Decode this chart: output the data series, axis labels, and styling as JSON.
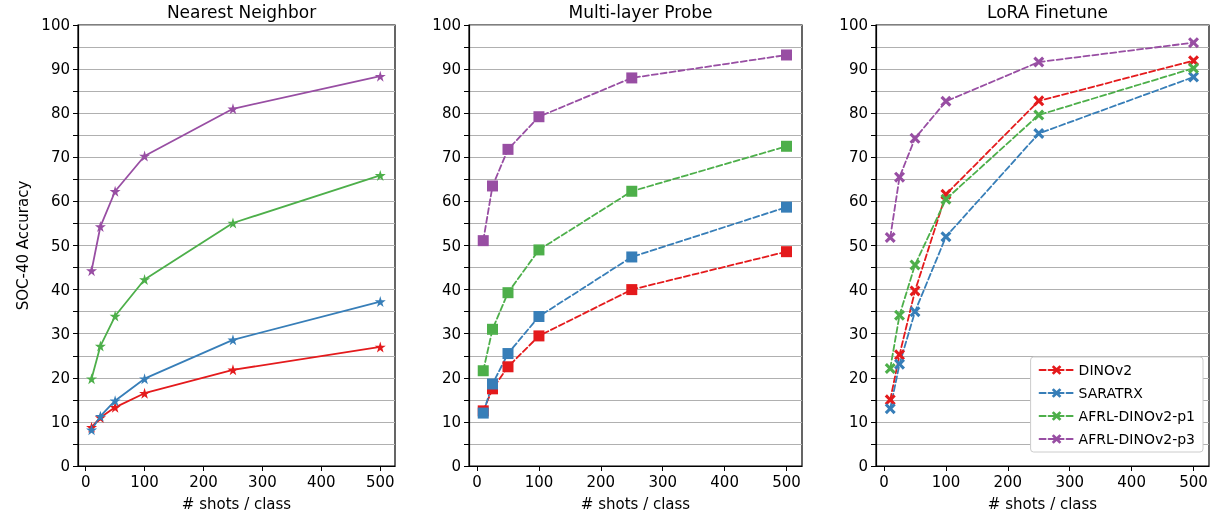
{
  "chart_data": [
    {
      "type": "line",
      "title": "Nearest Neighbor",
      "xlabel": "# shots / class",
      "ylabel": "SOC-40 Accuracy",
      "x": [
        10,
        25,
        50,
        100,
        250,
        500
      ],
      "marker": "star",
      "line_style": "solid",
      "grid": "y",
      "legend": false,
      "xlim": [
        -13,
        525
      ],
      "xticks": [
        0,
        100,
        200,
        300,
        400,
        500
      ],
      "ylim": [
        0,
        100
      ],
      "yticks": [
        0,
        {
          "value": 5,
          "label": null
        },
        10,
        {
          "value": 15,
          "label": null
        },
        20,
        {
          "value": 25,
          "label": null
        },
        30,
        {
          "value": 35,
          "label": null
        },
        40,
        {
          "value": 45,
          "label": null
        },
        50,
        {
          "value": 55,
          "label": null
        },
        60,
        {
          "value": 65,
          "label": null
        },
        70,
        {
          "value": 75,
          "label": null
        },
        80,
        {
          "value": 85,
          "label": null
        },
        90,
        {
          "value": 95,
          "label": null
        },
        100
      ],
      "series": [
        {
          "color": "#e41a1c",
          "values": [
            8.8,
            11,
            13.3,
            16.5,
            21.8,
            27
          ]
        },
        {
          "color": "#377eb8",
          "values": [
            8.2,
            11.3,
            14.8,
            19.8,
            28.6,
            37.3
          ]
        },
        {
          "color": "#4daf4a",
          "values": [
            19.8,
            27.2,
            34,
            42.3,
            55.1,
            65.9
          ]
        },
        {
          "color": "#984ea3",
          "values": [
            44.3,
            54.3,
            62.3,
            70.3,
            81,
            88.4
          ]
        }
      ]
    },
    {
      "type": "line",
      "title": "Multi-layer Probe",
      "xlabel": "# shots / class",
      "x": [
        10,
        25,
        50,
        100,
        250,
        500
      ],
      "marker": "square",
      "line_style": "dashed",
      "grid": "y",
      "legend": false,
      "xlim": [
        -13,
        525
      ],
      "xticks": [
        0,
        100,
        200,
        300,
        400,
        500
      ],
      "ylim": [
        0,
        100
      ],
      "yticks": [
        0,
        {
          "value": 5,
          "label": null
        },
        10,
        {
          "value": 15,
          "label": null
        },
        20,
        {
          "value": 25,
          "label": null
        },
        30,
        {
          "value": 35,
          "label": null
        },
        40,
        {
          "value": 45,
          "label": null
        },
        50,
        {
          "value": 55,
          "label": null
        },
        60,
        {
          "value": 65,
          "label": null
        },
        70,
        {
          "value": 75,
          "label": null
        },
        80,
        {
          "value": 85,
          "label": null
        },
        90,
        {
          "value": 95,
          "label": null
        },
        100
      ],
      "series": [
        {
          "color": "#e41a1c",
          "values": [
            12.5,
            17.5,
            22.5,
            29.5,
            40,
            48.6
          ]
        },
        {
          "color": "#377eb8",
          "values": [
            12,
            18.6,
            25.5,
            33.9,
            47.4,
            58.7
          ]
        },
        {
          "color": "#4daf4a",
          "values": [
            21.6,
            31,
            39.3,
            49,
            62.3,
            72.5
          ]
        },
        {
          "color": "#984ea3",
          "values": [
            51.1,
            63.5,
            71.8,
            79.2,
            88,
            93.2
          ]
        }
      ]
    },
    {
      "type": "line",
      "title": "LoRA Finetune",
      "xlabel": "# shots / class",
      "x": [
        10,
        25,
        50,
        100,
        250,
        500
      ],
      "marker": "cross",
      "line_style": "dashed",
      "grid": "y",
      "legend": "bottom right",
      "xlim": [
        -13,
        525
      ],
      "xticks": [
        0,
        100,
        200,
        300,
        400,
        500
      ],
      "ylim": [
        0,
        100
      ],
      "yticks": [
        0,
        {
          "value": 5,
          "label": null
        },
        10,
        {
          "value": 15,
          "label": null
        },
        20,
        {
          "value": 25,
          "label": null
        },
        30,
        {
          "value": 35,
          "label": null
        },
        40,
        {
          "value": 45,
          "label": null
        },
        50,
        {
          "value": 55,
          "label": null
        },
        60,
        {
          "value": 65,
          "label": null
        },
        70,
        {
          "value": 75,
          "label": null
        },
        80,
        {
          "value": 85,
          "label": null
        },
        90,
        {
          "value": 95,
          "label": null
        },
        100
      ],
      "series": [
        {
          "name": "DINOv2",
          "color": "#e41a1c",
          "values": [
            15,
            25.2,
            39.7,
            61.6,
            82.8,
            91.9
          ]
        },
        {
          "name": "SARATRX",
          "color": "#377eb8",
          "values": [
            13,
            23.1,
            35,
            52,
            75.4,
            88.2
          ]
        },
        {
          "name": "AFRL-DINOv2-p1",
          "color": "#4daf4a",
          "values": [
            22.1,
            34.2,
            45.6,
            60.5,
            79.6,
            90.2
          ]
        },
        {
          "name": "AFRL-DINOv2-p3",
          "color": "#984ea3",
          "values": [
            51.8,
            65.5,
            74.3,
            82.7,
            91.6,
            96
          ]
        }
      ]
    }
  ]
}
